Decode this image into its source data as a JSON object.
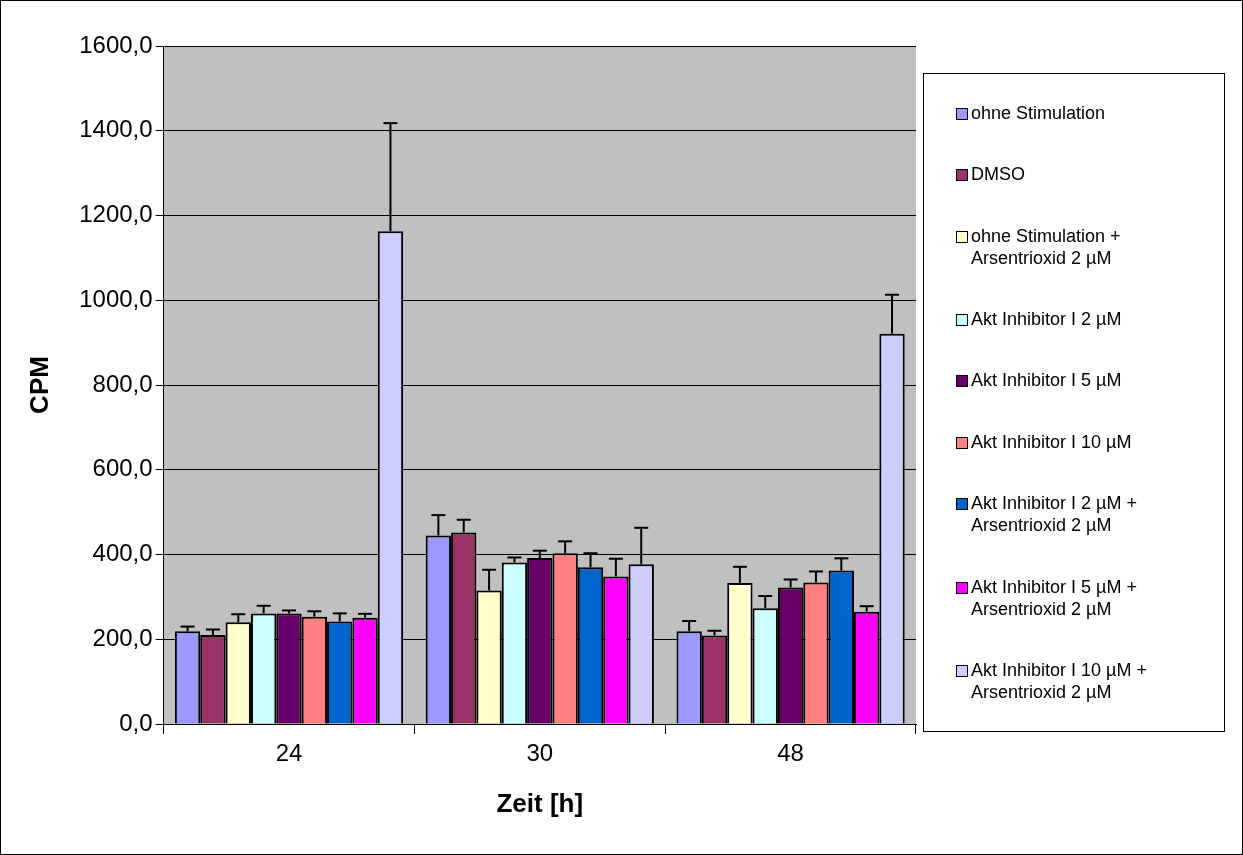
{
  "chart_data": {
    "type": "bar",
    "xlabel": "Zeit [h]",
    "ylabel": "CPM",
    "categories": [
      "24",
      "30",
      "48"
    ],
    "series": [
      {
        "name": "ohne Stimulation",
        "color": "#9999ff",
        "values": [
          219,
          445,
          219
        ],
        "errors": [
          [
            219,
            230
          ],
          [
            445,
            493
          ],
          [
            219,
            243
          ]
        ]
      },
      {
        "name": "DMSO",
        "color": "#993366",
        "values": [
          210,
          452,
          209
        ],
        "errors": [
          [
            210,
            223
          ],
          [
            452,
            482
          ],
          [
            209,
            220
          ]
        ]
      },
      {
        "name": "ohne Stimulation + Arsentrioxid 2 µM",
        "color": "#ffffcc",
        "values": [
          240,
          315,
          333
        ],
        "errors": [
          [
            240,
            259
          ],
          [
            315,
            364
          ],
          [
            333,
            371
          ]
        ]
      },
      {
        "name": "Akt Inhibitor I 2 µM",
        "color": "#ccffff",
        "values": [
          261,
          381,
          273
        ],
        "errors": [
          [
            261,
            279
          ],
          [
            381,
            393
          ],
          [
            273,
            302
          ]
        ]
      },
      {
        "name": "Akt Inhibitor I 5 µM",
        "color": "#660066",
        "values": [
          261,
          392,
          322
        ],
        "errors": [
          [
            261,
            268
          ],
          [
            392,
            409
          ],
          [
            322,
            341
          ]
        ]
      },
      {
        "name": "Akt Inhibitor I 10 µM",
        "color": "#ff8080",
        "values": [
          253,
          403,
          334
        ],
        "errors": [
          [
            253,
            266
          ],
          [
            403,
            431
          ],
          [
            334,
            360
          ]
        ]
      },
      {
        "name": "Akt Inhibitor I 2 µM + Arsentrioxid 2 µM",
        "color": "#0066cc",
        "values": [
          242,
          370,
          362
        ],
        "errors": [
          [
            242,
            261
          ],
          [
            370,
            403
          ],
          [
            362,
            391
          ]
        ]
      },
      {
        "name": "Akt Inhibitor I 5 µM + Arsentrioxid 2 µM",
        "color": "#ff00ff",
        "values": [
          251,
          348,
          265
        ],
        "errors": [
          [
            251,
            260
          ],
          [
            348,
            390
          ],
          [
            265,
            278
          ]
        ]
      },
      {
        "name": "Akt Inhibitor I 10 µM + Arsentrioxid 2 µM",
        "color": "#ccccff",
        "values": [
          1163,
          377,
          921
        ],
        "errors": [
          [
            1163,
            1418
          ],
          [
            377,
            463
          ],
          [
            921,
            1013
          ]
        ]
      }
    ],
    "ylim": [
      0,
      1600
    ],
    "yticks": [
      {
        "value": 0,
        "label": "0,0"
      },
      {
        "value": 200,
        "label": "200,0"
      },
      {
        "value": 400,
        "label": "400,0"
      },
      {
        "value": 600,
        "label": "600,0"
      },
      {
        "value": 800,
        "label": "800,0"
      },
      {
        "value": 1000,
        "label": "1000,0"
      },
      {
        "value": 1200,
        "label": "1200,0"
      },
      {
        "value": 1400,
        "label": "1400,0"
      },
      {
        "value": 1600,
        "label": "1600,0"
      }
    ],
    "grid": "y",
    "legend": "right"
  }
}
